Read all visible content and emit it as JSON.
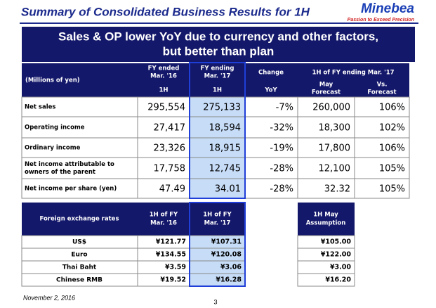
{
  "header": {
    "title": "Summary of Consolidated Business Results for 1H",
    "logo": "Minebea",
    "tagline": "Passion to Exceed Precision"
  },
  "banner": {
    "lines": [
      "Sales & OP lower YoY due to currency and other factors,",
      "but better than plan"
    ]
  },
  "results_table": {
    "unit_label": "(Millions of yen)",
    "headers": [
      [
        "FY ended",
        "Mar. '16",
        "1H"
      ],
      [
        "FY ending",
        "Mar. '17",
        "1H"
      ],
      [
        "Change",
        "YoY"
      ]
    ],
    "group_header": "1H of FY ending Mar. '17",
    "group_columns": [
      [
        "May",
        "Forecast"
      ],
      [
        "Vs.",
        "Forecast"
      ]
    ],
    "rows": [
      {
        "label": [
          "Net sales"
        ],
        "cells": [
          "295,554",
          "275,133",
          "-7%",
          "260,000",
          "106%"
        ]
      },
      {
        "label": [
          "Operating income"
        ],
        "cells": [
          "27,417",
          "18,594",
          "-32%",
          "18,300",
          "102%"
        ]
      },
      {
        "label": [
          "Ordinary income"
        ],
        "cells": [
          "23,326",
          "18,915",
          "-19%",
          "17,800",
          "106%"
        ]
      },
      {
        "label": [
          "Net income attributable to",
          "owners of the parent"
        ],
        "cells": [
          "17,758",
          "12,745",
          "-28%",
          "12,100",
          "105%"
        ]
      },
      {
        "label": [
          "Net income per share (yen)"
        ],
        "cells": [
          "47.49",
          "34.01",
          "-28%",
          "32.32",
          "105%"
        ]
      }
    ]
  },
  "fx_table": {
    "header_label": "Foreign exchange rates",
    "headers": [
      [
        "1H of FY",
        "Mar. '16"
      ],
      [
        "1H of FY",
        "Mar. '17"
      ]
    ],
    "assumption_header": [
      "1H May",
      "Assumption"
    ],
    "rows": [
      {
        "label": "US$",
        "cells": [
          "¥121.77",
          "¥107.31",
          "¥105.00"
        ]
      },
      {
        "label": "Euro",
        "cells": [
          "¥134.55",
          "¥120.08",
          "¥122.00"
        ]
      },
      {
        "label": "Thai Baht",
        "cells": [
          "¥3.59",
          "¥3.06",
          "¥3.00"
        ]
      },
      {
        "label": "Chinese RMB",
        "cells": [
          "¥19.52",
          "¥16.28",
          "¥16.20"
        ]
      }
    ]
  },
  "footer": {
    "date": "November 2, 2016",
    "page": "3"
  }
}
